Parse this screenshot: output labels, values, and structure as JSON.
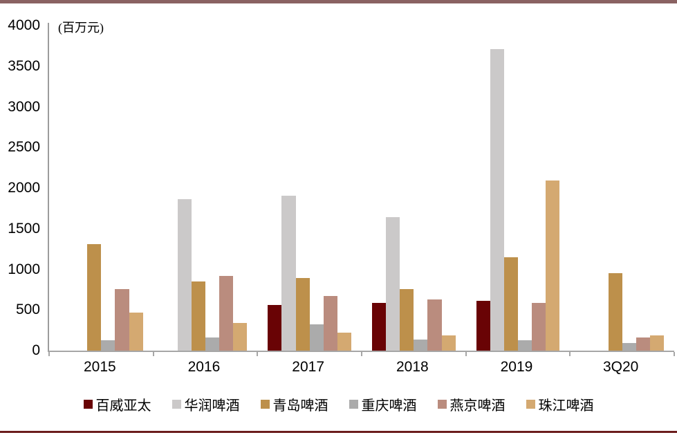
{
  "chart_data": {
    "type": "bar",
    "title": "",
    "unit_label": "(百万元)",
    "categories": [
      "2015",
      "2016",
      "2017",
      "2018",
      "2019",
      "3Q20"
    ],
    "series": [
      {
        "name": "百威亚太",
        "color": "#690305",
        "values": [
          null,
          null,
          560,
          590,
          610,
          null
        ]
      },
      {
        "name": "华润啤酒",
        "color": "#CBC9C9",
        "values": [
          null,
          1860,
          1910,
          1640,
          3710,
          null
        ]
      },
      {
        "name": "青岛啤酒",
        "color": "#BD904B",
        "values": [
          1310,
          850,
          890,
          760,
          1150,
          950
        ]
      },
      {
        "name": "重庆啤酒",
        "color": "#ABABAB",
        "values": [
          130,
          160,
          320,
          140,
          130,
          90
        ]
      },
      {
        "name": "燕京啤酒",
        "color": "#BA8C7E",
        "values": [
          760,
          920,
          670,
          630,
          590,
          160
        ]
      },
      {
        "name": "珠江啤酒",
        "color": "#D4A971",
        "values": [
          470,
          340,
          220,
          190,
          2090,
          190
        ]
      }
    ],
    "ylim": [
      0,
      4000
    ],
    "y_ticks": [
      0,
      500,
      1000,
      1500,
      2000,
      2500,
      3000,
      3500,
      4000
    ],
    "grid": false,
    "legend_position": "bottom"
  },
  "frame": {
    "top_rule_color": "#8A6262",
    "bottom_rule_color": "#6B1C1C"
  }
}
